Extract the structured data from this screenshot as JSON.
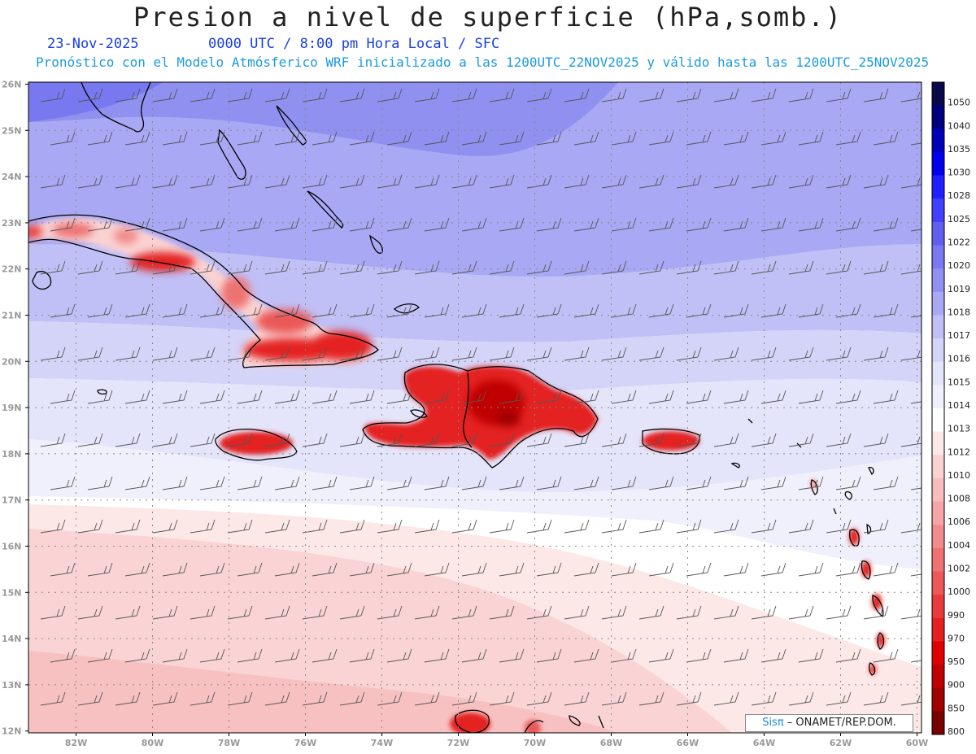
{
  "header": {
    "title": "Presion a nivel de superficie (hPa,somb.)",
    "date": "23-Nov-2025",
    "time_info": "0000 UTC / 8:00 pm Hora Local / SFC",
    "forecast_info": "Pronóstico con el Modelo Atmósferico WRF inicializado a las 1200UTC_22NOV2025 y válido hasta las  1200UTC_25NOV2025"
  },
  "axes": {
    "lat_labels": [
      "26N",
      "25N",
      "24N",
      "23N",
      "22N",
      "21N",
      "20N",
      "19N",
      "18N",
      "17N",
      "16N",
      "15N",
      "14N",
      "13N",
      "12N"
    ],
    "lon_labels": [
      "82W",
      "80W",
      "78W",
      "76W",
      "74W",
      "72W",
      "70W",
      "68W",
      "66W",
      "64W",
      "62W",
      "60W"
    ]
  },
  "colorbar": {
    "levels": [
      "1050",
      "1040",
      "1035",
      "1030",
      "1028",
      "1025",
      "1022",
      "1020",
      "1019",
      "1018",
      "1017",
      "1016",
      "1015",
      "1014",
      "1013",
      "1012",
      "1010",
      "1008",
      "1006",
      "1004",
      "1002",
      "1000",
      "990",
      "970",
      "950",
      "900",
      "850",
      "800"
    ],
    "colors": [
      "#08084a",
      "#00007e",
      "#0000b8",
      "#0000ee",
      "#2020ff",
      "#4040ff",
      "#6060f0",
      "#7878f0",
      "#9090f0",
      "#a8a8f4",
      "#c0c0f6",
      "#d4d4f8",
      "#e4e4fa",
      "#f0f0fc",
      "#ffffff",
      "#fde8e8",
      "#fad2d2",
      "#f8bcbc",
      "#f5a5a5",
      "#f28c8c",
      "#ef7272",
      "#ec5858",
      "#e83c3c",
      "#e42020",
      "#e00000",
      "#c00000",
      "#a00000",
      "#780000"
    ]
  },
  "credit": {
    "brand": "Sisπ",
    "org": " – ONAMET/REP.DOM."
  }
}
